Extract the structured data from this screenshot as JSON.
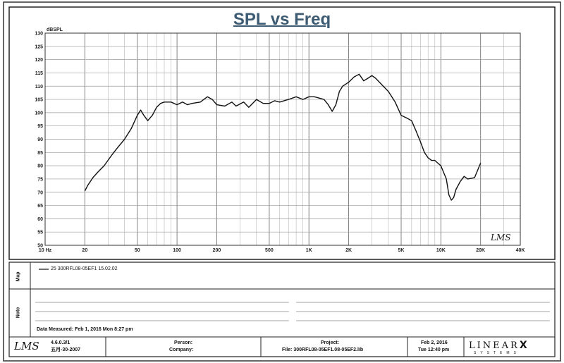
{
  "chart_data": {
    "type": "line",
    "title": "SPL vs Freq",
    "ylabel": "dBSPL",
    "xscale": "log",
    "xlim": [
      10,
      40000
    ],
    "ylim": [
      50,
      130
    ],
    "grid": true,
    "y_ticks": [
      50,
      55,
      60,
      65,
      70,
      75,
      80,
      85,
      90,
      95,
      100,
      105,
      110,
      115,
      120,
      125,
      130
    ],
    "x_ticks": [
      {
        "value": 10,
        "label": "10 Hz"
      },
      {
        "value": 20,
        "label": "20"
      },
      {
        "value": 50,
        "label": "50"
      },
      {
        "value": 100,
        "label": "100"
      },
      {
        "value": 200,
        "label": "200"
      },
      {
        "value": 500,
        "label": "500"
      },
      {
        "value": 1000,
        "label": "1K"
      },
      {
        "value": 2000,
        "label": "2K"
      },
      {
        "value": 5000,
        "label": "5K"
      },
      {
        "value": 10000,
        "label": "10K"
      },
      {
        "value": 20000,
        "label": "20K"
      },
      {
        "value": 40000,
        "label": "40K"
      }
    ],
    "series": [
      {
        "name": "25 300RFL08-05EF1 15.02.02",
        "color": "#111111",
        "x": [
          20,
          21,
          23,
          25,
          28,
          32,
          35,
          40,
          45,
          50,
          53,
          56,
          60,
          65,
          70,
          75,
          80,
          90,
          100,
          110,
          120,
          130,
          150,
          170,
          185,
          200,
          230,
          260,
          280,
          320,
          350,
          400,
          450,
          500,
          550,
          600,
          700,
          800,
          900,
          1000,
          1100,
          1300,
          1400,
          1500,
          1600,
          1700,
          1800,
          2000,
          2200,
          2400,
          2600,
          2800,
          3000,
          3200,
          3500,
          4000,
          4500,
          5000,
          5500,
          6000,
          6500,
          7000,
          7500,
          8000,
          8500,
          9000,
          10000,
          11000,
          11500,
          12000,
          12500,
          13000,
          14000,
          15000,
          16000,
          18000,
          20000
        ],
        "y": [
          70.5,
          72.5,
          75.5,
          77.5,
          80,
          84,
          86.5,
          90,
          94,
          99,
          101,
          99,
          97,
          99,
          102,
          103.5,
          104,
          104,
          103,
          104,
          103,
          103.5,
          104,
          106,
          105,
          103,
          102.5,
          104,
          102.5,
          104,
          102,
          105,
          103.5,
          103.5,
          104.5,
          104,
          105,
          106,
          105,
          106,
          106,
          105,
          103,
          100.5,
          103,
          108,
          110,
          111.5,
          113.5,
          114.5,
          112,
          113,
          114,
          113,
          111,
          108,
          104,
          99,
          98,
          97,
          93,
          89,
          85,
          83,
          82,
          82,
          80,
          75,
          69,
          67,
          68,
          71,
          74,
          76,
          75,
          75.5,
          81
        ]
      }
    ]
  },
  "footer": {
    "map_label": "Map",
    "note_label": "Note",
    "legend_entry": "25 300RFL08-05EF1 15.02.02",
    "date_measured": "Data Measured: Feb 1, 2016 Mon 8:27 pm",
    "version": "4.6.0.3/1",
    "version_date": "五月-30-2007",
    "person_label": "Person:",
    "company_label": "Company:",
    "project_label": "Project:",
    "file_label": "File: 300RFL08-05EF1.08-05EF2.lib",
    "print_date": "Feb 2, 2016",
    "print_time": "Tue 12:40 pm",
    "brand": "LINEAR",
    "brand_x": "X",
    "brand_sub": "SYSTEMS",
    "lms_logo": "LMS"
  }
}
